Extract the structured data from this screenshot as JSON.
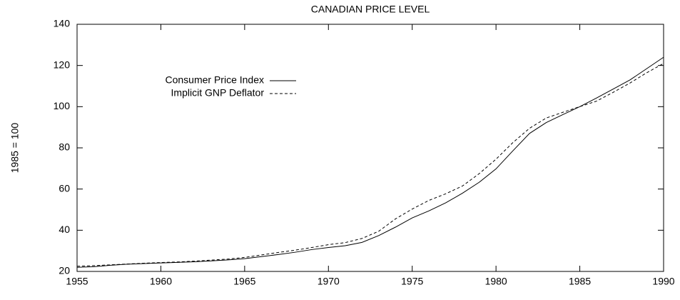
{
  "chart_data": {
    "type": "line",
    "title": "CANADIAN PRICE LEVEL",
    "ylabel": "1985 = 100",
    "x": [
      1955,
      1956,
      1957,
      1958,
      1959,
      1960,
      1961,
      1962,
      1963,
      1964,
      1965,
      1966,
      1967,
      1968,
      1969,
      1970,
      1971,
      1972,
      1973,
      1974,
      1975,
      1976,
      1977,
      1978,
      1979,
      1980,
      1981,
      1982,
      1983,
      1984,
      1985,
      1986,
      1987,
      1988,
      1989,
      1990
    ],
    "series": [
      {
        "name": "Consumer Price Index",
        "color": "#000000",
        "dashed": false,
        "values": [
          22,
          22.3,
          23,
          23.5,
          23.8,
          24.1,
          24.4,
          24.7,
          25.1,
          25.6,
          26.2,
          27.2,
          28.2,
          29.3,
          30.6,
          31.6,
          32.5,
          34.1,
          37.4,
          41.5,
          46,
          49.4,
          53.3,
          58,
          63.3,
          69.8,
          78.5,
          87,
          92.3,
          96.2,
          100,
          104.2,
          108.6,
          113,
          118.5,
          124
        ]
      },
      {
        "name": "Implicit GNP Deflator",
        "color": "#000000",
        "dashed": true,
        "values": [
          22.5,
          22.8,
          23.2,
          23.6,
          24,
          24.3,
          24.6,
          25,
          25.5,
          26,
          26.8,
          28,
          29.2,
          30.3,
          31.6,
          33,
          34,
          36,
          39.5,
          45.5,
          50.3,
          54.5,
          57.7,
          61.5,
          67.5,
          74.5,
          82.5,
          89.5,
          94.5,
          97.3,
          100,
          102.7,
          107,
          111.5,
          116.5,
          121
        ]
      }
    ],
    "xlim": [
      1955,
      1990
    ],
    "xticks": [
      1955,
      1960,
      1965,
      1970,
      1975,
      1980,
      1985,
      1990
    ],
    "ylim": [
      20,
      140
    ],
    "yticks": [
      20,
      40,
      60,
      80,
      100,
      120,
      140
    ],
    "legend": "upper left"
  }
}
